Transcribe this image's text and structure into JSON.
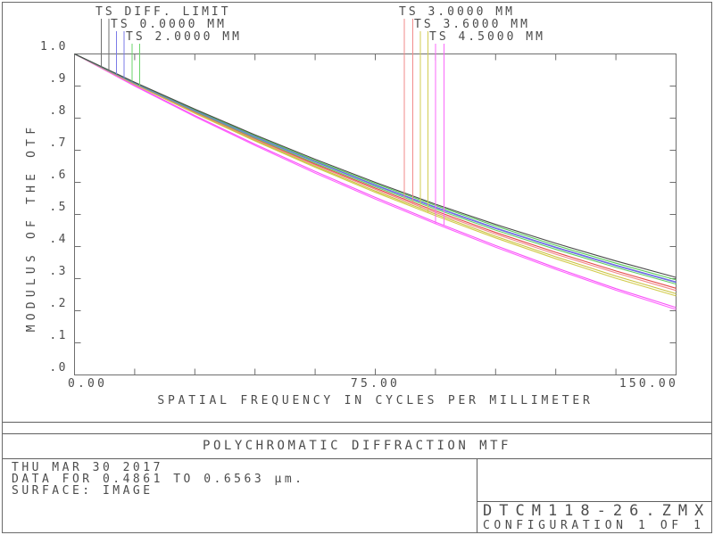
{
  "colors": {
    "background": "#ffffff",
    "frame": "#6e6e6e",
    "text": "#4c4c4c",
    "divider": "#5f5f5f"
  },
  "chart_data": {
    "type": "line",
    "title": "POLYCHROMATIC DIFFRACTION MTF",
    "xlabel": "SPATIAL FREQUENCY IN CYCLES PER MILLIMETER",
    "ylabel": "MODULUS OF THE OTF",
    "xlim": [
      0,
      150
    ],
    "ylim": [
      0,
      1
    ],
    "grid": "off",
    "minor_tick_step_x": 15,
    "x_tick_values": [
      0,
      75,
      150
    ],
    "x_tick_labels": [
      "0.00",
      "75.00",
      "150.00"
    ],
    "y_tick_values": [
      1.0,
      0.9,
      0.8,
      0.7,
      0.6,
      0.5,
      0.4,
      0.3,
      0.2,
      0.1,
      0.0
    ],
    "y_tick_labels": [
      "1.0",
      ".9",
      ".8",
      ".7",
      ".6",
      ".5",
      ".4",
      ".3",
      ".2",
      ".1",
      ".0"
    ],
    "x": [
      0,
      15,
      30,
      45,
      60,
      75,
      90,
      105,
      120,
      135,
      150
    ],
    "series": [
      {
        "name": "TS 4.5000 MM (T)",
        "color": "#ff5fff",
        "values": [
          1.0,
          0.9,
          0.805,
          0.715,
          0.629,
          0.548,
          0.471,
          0.398,
          0.329,
          0.264,
          0.204
        ]
      },
      {
        "name": "TS 4.5000 MM (S)",
        "color": "#f850f8",
        "values": [
          1.0,
          0.902,
          0.808,
          0.719,
          0.634,
          0.553,
          0.476,
          0.403,
          0.334,
          0.269,
          0.21
        ]
      },
      {
        "name": "TS 3.6000 MM (S)",
        "color": "#d2cb4a",
        "values": [
          1.0,
          0.905,
          0.815,
          0.729,
          0.647,
          0.569,
          0.496,
          0.427,
          0.362,
          0.301,
          0.246
        ]
      },
      {
        "name": "TS 3.6000 MM (T)",
        "color": "#c9c23f",
        "values": [
          1.0,
          0.906,
          0.817,
          0.731,
          0.65,
          0.573,
          0.501,
          0.432,
          0.368,
          0.308,
          0.253
        ]
      },
      {
        "name": "TS 3.0000 MM (S)",
        "color": "#f28888",
        "values": [
          1.0,
          0.907,
          0.819,
          0.734,
          0.654,
          0.578,
          0.506,
          0.439,
          0.376,
          0.318,
          0.263
        ]
      },
      {
        "name": "TS 3.0000 MM (T)",
        "color": "#e34949",
        "values": [
          1.0,
          0.908,
          0.82,
          0.737,
          0.657,
          0.582,
          0.511,
          0.444,
          0.382,
          0.324,
          0.27
        ]
      },
      {
        "name": "TS 2.0000 MM (S)",
        "color": "#63d163",
        "values": [
          1.0,
          0.908,
          0.821,
          0.738,
          0.66,
          0.586,
          0.517,
          0.451,
          0.391,
          0.335,
          0.283
        ]
      },
      {
        "name": "TS 0.0000 MM (S)",
        "color": "#7676e6",
        "values": [
          1.0,
          0.909,
          0.823,
          0.741,
          0.664,
          0.59,
          0.521,
          0.456,
          0.396,
          0.34,
          0.288
        ]
      },
      {
        "name": "TS 0.0000 MM (T)",
        "color": "#6b6be2",
        "values": [
          1.0,
          0.91,
          0.824,
          0.742,
          0.665,
          0.592,
          0.523,
          0.458,
          0.398,
          0.342,
          0.29
        ]
      },
      {
        "name": "TS 2.0000 MM (T)",
        "color": "#57cb57",
        "values": [
          1.0,
          0.911,
          0.826,
          0.745,
          0.668,
          0.596,
          0.528,
          0.464,
          0.404,
          0.348,
          0.296
        ]
      },
      {
        "name": "TS DIFF. LIMIT",
        "color": "#4a4a4a",
        "values": [
          1.0,
          0.912,
          0.828,
          0.748,
          0.672,
          0.6,
          0.532,
          0.469,
          0.41,
          0.355,
          0.304
        ]
      }
    ],
    "legend": {
      "position": "top",
      "left": [
        {
          "label": "TS DIFF. LIMIT",
          "line_color": "#6f6f6f",
          "targets": [
            "TS DIFF. LIMIT",
            "TS DIFF. LIMIT"
          ]
        },
        {
          "label": "TS 0.0000 MM",
          "line_color": "#7b7be8",
          "targets": [
            "TS 0.0000 MM (T)",
            "TS 0.0000 MM (S)"
          ]
        },
        {
          "label": "TS 2.0000 MM",
          "line_color": "#6bd46b",
          "targets": [
            "TS 2.0000 MM (T)",
            "TS 2.0000 MM (S)"
          ]
        }
      ],
      "right": [
        {
          "label": "TS 3.0000 MM",
          "line_color": "#f28b8b",
          "targets": [
            "TS 3.0000 MM (T)",
            "TS 3.0000 MM (S)"
          ]
        },
        {
          "label": "TS 3.6000 MM",
          "line_color": "#d3cc52",
          "targets": [
            "TS 3.6000 MM (T)",
            "TS 3.6000 MM (S)"
          ]
        },
        {
          "label": "TS 4.5000 MM",
          "line_color": "#fa68fa",
          "targets": [
            "TS 4.5000 MM (T)",
            "TS 4.5000 MM (S)"
          ]
        }
      ]
    }
  },
  "footer": {
    "title": "POLYCHROMATIC DIFFRACTION MTF",
    "date": "THU MAR 30 2017",
    "data_range": "DATA FOR 0.4861 TO 0.6563 µm.",
    "surface": "SURFACE: IMAGE",
    "file_name": "DTCM118-26.ZMX",
    "configuration": "CONFIGURATION 1 OF 1"
  }
}
